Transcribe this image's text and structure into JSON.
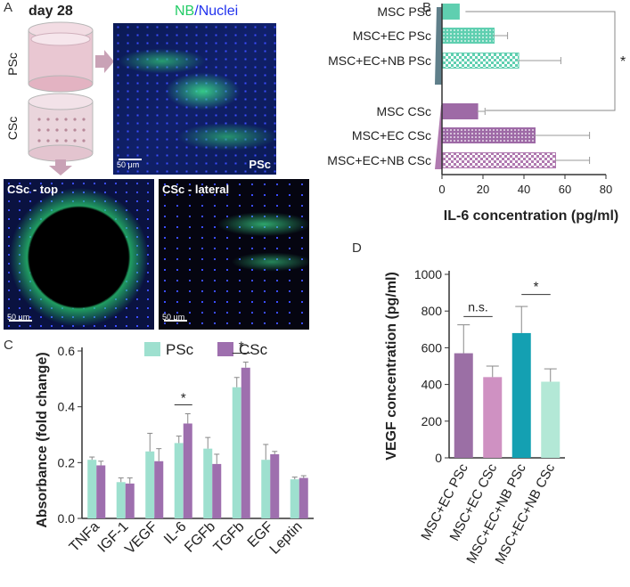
{
  "panel_labels": {
    "a": "A",
    "b": "B",
    "c": "C",
    "d": "D"
  },
  "panel_a": {
    "title": "day 28",
    "scaffold_labels": [
      "PSc",
      "CSc"
    ],
    "stain_nb": "NB",
    "stain_sep": "/",
    "stain_nuclei": "Nuclei",
    "main_image_tag": "PSc",
    "scale_label": "50 μm",
    "top_image_title": "CSc - top",
    "lateral_image_title": "CSc - lateral",
    "colors": {
      "nb": "#22cc66",
      "nuclei": "#2233ee",
      "arrow": "#c9a2b6"
    }
  },
  "chart_b": {
    "type": "bar",
    "orientation": "horizontal",
    "categories": [
      "MSC PSc",
      "MSC+EC PSc",
      "MSC+EC+NB PSc",
      "MSC CSc",
      "MSC+EC CSc",
      "MSC+EC+NB CSc"
    ],
    "values": [
      8,
      25,
      37,
      17,
      45,
      55
    ],
    "errors": [
      0,
      7,
      21,
      4,
      27,
      17
    ],
    "xlabel": "IL-6 concentration (pg/ml)",
    "xlim": [
      0,
      80
    ],
    "xticks": [
      "0",
      "20",
      "40",
      "60",
      "80"
    ],
    "significance": "*",
    "colors": {
      "psc": "#5fcfb0",
      "csc": "#9e6aa6",
      "psc_wedge": "#5f7f8a",
      "csc_wedge": "#b07ab0"
    }
  },
  "chart_c": {
    "type": "bar",
    "categories": [
      "TNFa",
      "IGF-1",
      "VEGF",
      "IL-6",
      "FGFb",
      "TGFb",
      "EGF",
      "Leptin"
    ],
    "series": [
      {
        "name": "PSc",
        "values": [
          0.21,
          0.13,
          0.24,
          0.27,
          0.25,
          0.47,
          0.21,
          0.14
        ],
        "errors": [
          0.01,
          0.015,
          0.065,
          0.025,
          0.04,
          0.035,
          0.055,
          0.008
        ]
      },
      {
        "name": "CSc",
        "values": [
          0.19,
          0.125,
          0.205,
          0.34,
          0.195,
          0.54,
          0.23,
          0.145
        ],
        "errors": [
          0.015,
          0.02,
          0.045,
          0.035,
          0.035,
          0.02,
          0.01,
          0.008
        ]
      }
    ],
    "ylabel": "Absorbance (fold change)",
    "ylim": [
      0,
      0.6
    ],
    "yticks": [
      "0.0",
      "0.2",
      "0.4",
      "0.6"
    ],
    "significance": [
      "*",
      "*"
    ],
    "colors": {
      "psc": "#9ee0cf",
      "csc": "#9e6fae"
    }
  },
  "chart_d": {
    "type": "bar",
    "categories": [
      "MSC+EC PSc",
      "MSC+EC CSc",
      "MSC+EC+NB PSc",
      "MSC+EC+NB CSc"
    ],
    "values": [
      570,
      440,
      680,
      415
    ],
    "errors": [
      155,
      60,
      145,
      70
    ],
    "ylabel": "VEGF concentration (pg/ml)",
    "ylim": [
      0,
      1000
    ],
    "yticks": [
      "0",
      "200",
      "400",
      "600",
      "800",
      "1000"
    ],
    "comparisons": [
      "n.s.",
      "*"
    ],
    "colors": [
      "#9b6fa5",
      "#cf91c2",
      "#14a0b2",
      "#b3e8d6"
    ]
  }
}
